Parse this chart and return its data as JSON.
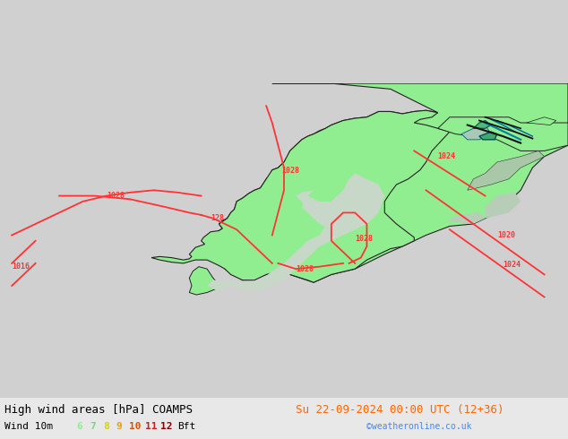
{
  "title_left": "High wind areas [hPa] COAMPS",
  "title_right": "Su 22-09-2024 00:00 UTC (12+36)",
  "subtitle_left": "Wind 10m",
  "subtitle_right": "©weatheronline.co.uk",
  "legend_nums": [
    "6",
    "7",
    "8",
    "9",
    "10",
    "11",
    "12"
  ],
  "legend_colors": [
    "#90ee90",
    "#78d870",
    "#d4d400",
    "#f0a000",
    "#e05000",
    "#c82020",
    "#880000"
  ],
  "legend_bft": "Bft",
  "ocean_color": "#d0d0d0",
  "land_color": "#90ee90",
  "sea_color": "#c8dcc8",
  "border_color": "#222222",
  "white_sea_color": "#b8e8b8",
  "contour_color": "#ff3333",
  "teal_line": "#0080a0",
  "black_line": "#111111",
  "text_dark": "#000000",
  "text_orange": "#ff6600",
  "text_blue": "#4488ee",
  "font_mono": "monospace",
  "title_fs": 9,
  "legend_fs": 8,
  "dpi": 100,
  "figsize": [
    6.34,
    4.9
  ],
  "lon_min": -8,
  "lon_max": 40,
  "lat_min": 53.0,
  "lat_max": 73.5
}
